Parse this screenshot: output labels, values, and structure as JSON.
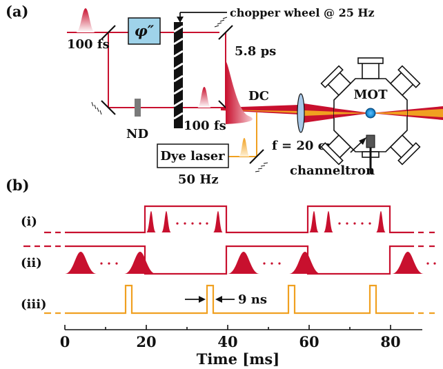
{
  "panel_a": {
    "label": "(a)",
    "pulse_label_input": "100 fs",
    "phase_element": "φ″",
    "chopper_label": "chopper wheel @ 25 Hz",
    "chirped_label": "5.8 ps",
    "pulse_label_direct": "100 fs",
    "nd_label": "ND",
    "dc_label": "DC",
    "dye_laser_label": "Dye laser",
    "dye_rate_label": "50 Hz",
    "lens_label": "f = 20 cm",
    "mot_label": "MOT",
    "detector_label": "channeltron"
  },
  "panel_b": {
    "label": "(b)",
    "row_labels": [
      "(i)",
      "(ii)",
      "(iii)"
    ],
    "gap_label": "9 ns",
    "xlabel": "Time [ms]",
    "ticks": [
      0,
      20,
      40,
      60,
      80
    ]
  },
  "colors": {
    "beam_red": "#c8102e",
    "pulse_red": "#c8102e",
    "dye_orange": "#f0a020",
    "phase_box": "#9fd3ea",
    "nd_filter": "#7a7a7a",
    "lens": "#a8c8e8",
    "mot_cloud": "#1f8fd6"
  }
}
